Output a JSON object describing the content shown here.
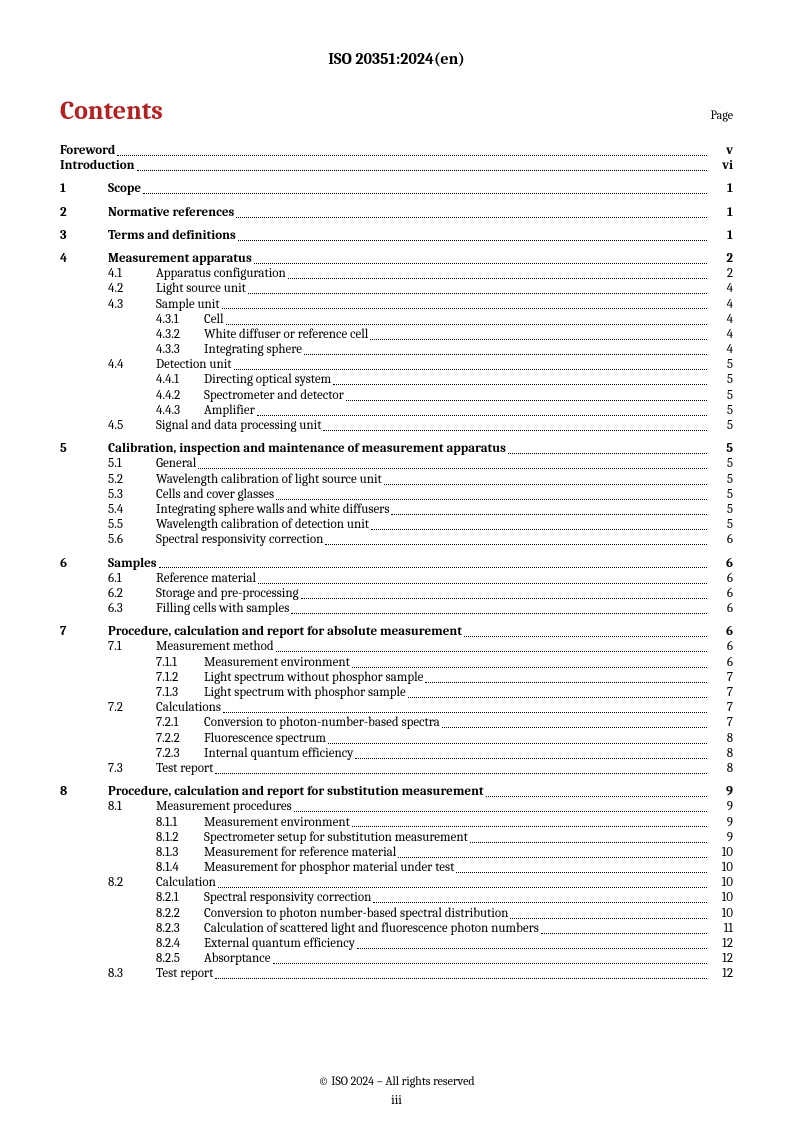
{
  "header": {
    "docId": "ISO 20351:2024(en)"
  },
  "contents": {
    "title": "Contents",
    "pageLabel": "Page"
  },
  "footer": {
    "copyright": "© ISO 2024 – All rights reserved",
    "pageNum": "iii"
  },
  "toc": [
    {
      "type": "row",
      "level": 0,
      "bold": true,
      "num": "",
      "title": "Foreword",
      "page": "v"
    },
    {
      "type": "row",
      "level": 0,
      "bold": true,
      "num": "",
      "title": "Introduction",
      "page": "vi"
    },
    {
      "type": "row",
      "level": 1,
      "bold": true,
      "num": "1",
      "title": "Scope",
      "page": "1",
      "gapBefore": true
    },
    {
      "type": "row",
      "level": 1,
      "bold": true,
      "num": "2",
      "title": "Normative references",
      "page": "1",
      "gapBefore": true
    },
    {
      "type": "row",
      "level": 1,
      "bold": true,
      "num": "3",
      "title": "Terms and definitions",
      "page": "1",
      "gapBefore": true
    },
    {
      "type": "row",
      "level": 1,
      "bold": true,
      "num": "4",
      "title": "Measurement apparatus",
      "page": "2",
      "gapBefore": true
    },
    {
      "type": "row",
      "level": 2,
      "num": "4.1",
      "title": "Apparatus configuration",
      "page": "2"
    },
    {
      "type": "row",
      "level": 2,
      "num": "4.2",
      "title": "Light source unit",
      "page": "4"
    },
    {
      "type": "row",
      "level": 2,
      "num": "4.3",
      "title": "Sample unit",
      "page": "4"
    },
    {
      "type": "row",
      "level": 3,
      "num": "4.3.1",
      "title": "Cell",
      "page": "4"
    },
    {
      "type": "row",
      "level": 3,
      "num": "4.3.2",
      "title": "White diffuser or reference cell",
      "page": "4"
    },
    {
      "type": "row",
      "level": 3,
      "num": "4.3.3",
      "title": "Integrating sphere",
      "page": "4"
    },
    {
      "type": "row",
      "level": 2,
      "num": "4.4",
      "title": "Detection unit",
      "page": "5"
    },
    {
      "type": "row",
      "level": 3,
      "num": "4.4.1",
      "title": "Directing optical system",
      "page": "5"
    },
    {
      "type": "row",
      "level": 3,
      "num": "4.4.2",
      "title": "Spectrometer and detector",
      "page": "5"
    },
    {
      "type": "row",
      "level": 3,
      "num": "4.4.3",
      "title": "Amplifier",
      "page": "5"
    },
    {
      "type": "row",
      "level": 2,
      "num": "4.5",
      "title": "Signal and data processing unit",
      "page": "5"
    },
    {
      "type": "row",
      "level": 1,
      "bold": true,
      "num": "5",
      "title": "Calibration, inspection and maintenance of measurement apparatus",
      "page": "5",
      "gapBefore": true
    },
    {
      "type": "row",
      "level": 2,
      "num": "5.1",
      "title": "General",
      "page": "5"
    },
    {
      "type": "row",
      "level": 2,
      "num": "5.2",
      "title": "Wavelength calibration of light source unit",
      "page": "5"
    },
    {
      "type": "row",
      "level": 2,
      "num": "5.3",
      "title": "Cells and cover glasses",
      "page": "5"
    },
    {
      "type": "row",
      "level": 2,
      "num": "5.4",
      "title": "Integrating sphere walls and white diffusers",
      "page": "5"
    },
    {
      "type": "row",
      "level": 2,
      "num": "5.5",
      "title": "Wavelength calibration of detection unit",
      "page": "5"
    },
    {
      "type": "row",
      "level": 2,
      "num": "5.6",
      "title": "Spectral responsivity correction",
      "page": "6"
    },
    {
      "type": "row",
      "level": 1,
      "bold": true,
      "num": "6",
      "title": "Samples",
      "page": "6",
      "gapBefore": true
    },
    {
      "type": "row",
      "level": 2,
      "num": "6.1",
      "title": "Reference material",
      "page": "6"
    },
    {
      "type": "row",
      "level": 2,
      "num": "6.2",
      "title": "Storage and pre-processing",
      "page": "6"
    },
    {
      "type": "row",
      "level": 2,
      "num": "6.3",
      "title": "Filling cells with samples",
      "page": "6"
    },
    {
      "type": "row",
      "level": 1,
      "bold": true,
      "num": "7",
      "title": "Procedure, calculation and report for absolute measurement",
      "page": "6",
      "gapBefore": true
    },
    {
      "type": "row",
      "level": 2,
      "num": "7.1",
      "title": "Measurement method",
      "page": "6"
    },
    {
      "type": "row",
      "level": 3,
      "num": "7.1.1",
      "title": "Measurement environment",
      "page": "6"
    },
    {
      "type": "row",
      "level": 3,
      "num": "7.1.2",
      "title": "Light spectrum without phosphor sample",
      "page": "7"
    },
    {
      "type": "row",
      "level": 3,
      "num": "7.1.3",
      "title": "Light spectrum with phosphor sample",
      "page": "7"
    },
    {
      "type": "row",
      "level": 2,
      "num": "7.2",
      "title": "Calculations",
      "page": "7"
    },
    {
      "type": "row",
      "level": 3,
      "num": "7.2.1",
      "title": "Conversion to photon-number-based spectra",
      "page": "7"
    },
    {
      "type": "row",
      "level": 3,
      "num": "7.2.2",
      "title": "Fluorescence spectrum",
      "page": "8"
    },
    {
      "type": "row",
      "level": 3,
      "num": "7.2.3",
      "title": "Internal quantum efficiency",
      "page": "8"
    },
    {
      "type": "row",
      "level": 2,
      "num": "7.3",
      "title": "Test report",
      "page": "8"
    },
    {
      "type": "row",
      "level": 1,
      "bold": true,
      "num": "8",
      "title": "Procedure, calculation and report for substitution measurement",
      "page": "9",
      "gapBefore": true
    },
    {
      "type": "row",
      "level": 2,
      "num": "8.1",
      "title": "Measurement procedures",
      "page": "9"
    },
    {
      "type": "row",
      "level": 3,
      "num": "8.1.1",
      "title": "Measurement environment",
      "page": "9"
    },
    {
      "type": "row",
      "level": 3,
      "num": "8.1.2",
      "title": "Spectrometer setup for substitution measurement",
      "page": "9"
    },
    {
      "type": "row",
      "level": 3,
      "num": "8.1.3",
      "title": "Measurement for reference material",
      "page": "10"
    },
    {
      "type": "row",
      "level": 3,
      "num": "8.1.4",
      "title": "Measurement for phosphor material under test",
      "page": "10"
    },
    {
      "type": "row",
      "level": 2,
      "num": "8.2",
      "title": "Calculation",
      "page": "10"
    },
    {
      "type": "row",
      "level": 3,
      "num": "8.2.1",
      "title": "Spectral responsivity correction",
      "page": "10"
    },
    {
      "type": "row",
      "level": 3,
      "num": "8.2.2",
      "title": "Conversion to photon number-based spectral distribution",
      "page": "10"
    },
    {
      "type": "row",
      "level": 3,
      "num": "8.2.3",
      "title": "Calculation of scattered light and fluorescence photon numbers",
      "page": "11"
    },
    {
      "type": "row",
      "level": 3,
      "num": "8.2.4",
      "title": "External quantum efficiency",
      "page": "12"
    },
    {
      "type": "row",
      "level": 3,
      "num": "8.2.5",
      "title": "Absorptance",
      "page": "12"
    },
    {
      "type": "row",
      "level": 2,
      "num": "8.3",
      "title": "Test report",
      "page": "12"
    }
  ]
}
